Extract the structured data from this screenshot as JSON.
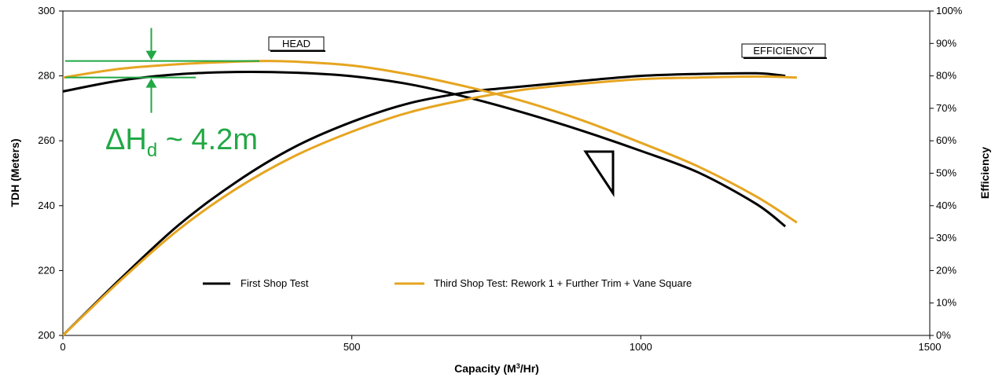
{
  "chart_data": {
    "type": "line",
    "xlabel": "Capacity (M",
    "xlabel_sup": "3",
    "xlabel_tail": "/Hr)",
    "ylabel_left": "TDH (Meters)",
    "ylabel_right": "Efficiency",
    "xlim": [
      0,
      1500
    ],
    "ylim_left": [
      200,
      300
    ],
    "ylim_right": [
      0,
      100
    ],
    "x_ticks": [
      "0",
      "500",
      "1000",
      "1500"
    ],
    "x_tick_values": [
      0,
      500,
      1000,
      1500
    ],
    "y_left_ticks": [
      "200",
      "220",
      "240",
      "260",
      "280",
      "300"
    ],
    "y_left_tick_values": [
      200,
      220,
      240,
      260,
      280,
      300
    ],
    "y_right_ticks": [
      "0%",
      "10%",
      "20%",
      "30%",
      "40%",
      "50%",
      "60%",
      "70%",
      "80%",
      "90%",
      "100%"
    ],
    "y_right_tick_values": [
      0,
      10,
      20,
      30,
      40,
      50,
      60,
      70,
      80,
      90,
      100
    ],
    "grid": false,
    "legend_position": "bottom-center",
    "curve_labels": {
      "head": "HEAD",
      "efficiency": "EFFICIENCY"
    },
    "series": [
      {
        "name": "First Shop Test",
        "color": "#000000",
        "head_x": [
          0,
          100,
          200,
          300,
          400,
          500,
          600,
          700,
          800,
          900,
          1000,
          1100,
          1200,
          1250
        ],
        "head_y": [
          275.2,
          278.6,
          280.5,
          281.2,
          281.0,
          279.9,
          277.4,
          273.4,
          268.5,
          263.0,
          256.9,
          250.2,
          240.5,
          233.6
        ],
        "eff_x": [
          0,
          100,
          200,
          300,
          400,
          500,
          600,
          700,
          750,
          800,
          900,
          1000,
          1100,
          1200,
          1250
        ],
        "eff_y": [
          0,
          17.5,
          34.0,
          47.3,
          58.0,
          65.8,
          71.6,
          75.0,
          76.0,
          76.8,
          78.5,
          80.0,
          80.6,
          80.8,
          80.0
        ]
      },
      {
        "name": "Third Shop Test: Rework 1 + Further Trim + Vane Square",
        "color": "#E6A520",
        "head_x": [
          0,
          100,
          200,
          300,
          350,
          400,
          500,
          600,
          700,
          800,
          900,
          1000,
          1100,
          1200,
          1270
        ],
        "head_y": [
          279.5,
          282.2,
          283.6,
          284.4,
          284.6,
          284.4,
          283.2,
          280.4,
          276.6,
          272.0,
          266.2,
          259.4,
          252.0,
          242.8,
          234.8
        ],
        "eff_x": [
          0,
          100,
          200,
          300,
          400,
          500,
          600,
          700,
          800,
          900,
          1000,
          1100,
          1200,
          1270
        ],
        "eff_y": [
          0,
          17.0,
          32.6,
          45.2,
          55.2,
          62.8,
          68.8,
          72.8,
          75.8,
          77.6,
          79.0,
          79.5,
          79.8,
          79.5
        ]
      }
    ],
    "annotation": {
      "color": "#22A845",
      "delta_prefix": "ΔH",
      "delta_sub": "d",
      "delta_suffix": " ~ 4.2m",
      "line_upper_head": 284.6,
      "line_lower_head": 279.5,
      "line_x_end_upper": 340,
      "line_x_end_lower": 230,
      "arrow_x": 153
    }
  }
}
